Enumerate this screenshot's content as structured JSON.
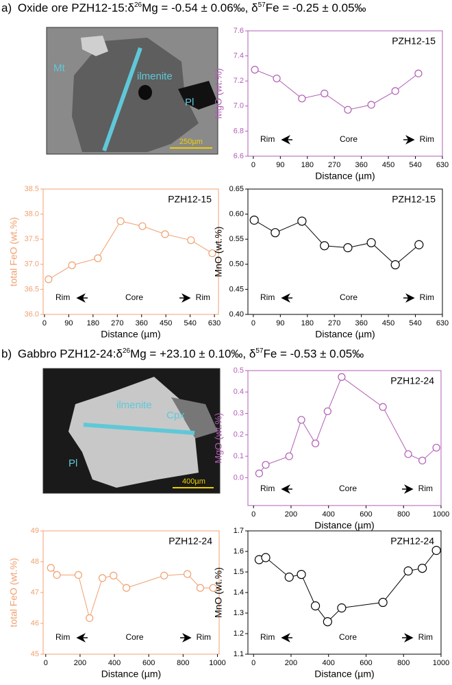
{
  "panels": [
    {
      "parts": [
        "a)",
        "Oxide ore PZH12-15:δ",
        "26",
        "Mg = -0.54 ± 0.06‰, δ",
        "57",
        "Fe = -0.25 ± 0.05‰"
      ]
    },
    {
      "parts": [
        "b)",
        "Gabbro PZH12-24:δ",
        "26",
        "Mg = +23.10 ± 0.10‰, δ",
        "57",
        "Fe = -0.53 ± 0.05‰"
      ]
    }
  ],
  "micrographs": [
    {
      "labels": [
        "Mt",
        "ilmenite",
        "Pl"
      ],
      "scale": "250µm"
    },
    {
      "labels": [
        "ilmenite",
        "Cpx",
        "Pl"
      ],
      "scale": "400µm"
    }
  ],
  "chart_data": [
    {
      "type": "line",
      "tag": "PZH12-15",
      "ylabel": "MgO (wt.%)",
      "xlabel": "Distance (µm)",
      "color": "#b05cb5",
      "annotations": [
        "Rim",
        "Core",
        "Rim"
      ],
      "x": [
        5,
        78,
        162,
        237,
        315,
        393,
        473,
        550
      ],
      "values": [
        7.29,
        7.22,
        7.06,
        7.1,
        6.97,
        7.01,
        7.12,
        7.26
      ],
      "xlim": [
        -18,
        630
      ],
      "xticks": [
        0,
        90,
        180,
        270,
        360,
        450,
        540,
        630
      ],
      "ylim": [
        6.6,
        7.6
      ],
      "yticks": [
        6.6,
        6.8,
        {
          "value": 7,
          "label": "7.0"
        },
        7.2,
        7.4,
        7.6
      ]
    },
    {
      "type": "line",
      "tag": "PZH12-15",
      "ylabel": "total FeO (wt.%)",
      "xlabel": "Distance (µm)",
      "color": "#f0a070",
      "annotations": [
        "Rim",
        "Core",
        "Rim"
      ],
      "x": [
        15,
        102,
        198,
        282,
        363,
        447,
        543,
        622
      ],
      "values": [
        36.7,
        36.98,
        37.12,
        37.86,
        37.76,
        37.6,
        37.48,
        37.22
      ],
      "xlim": [
        -5,
        645
      ],
      "xticks": [
        0,
        90,
        180,
        270,
        360,
        450,
        540,
        630
      ],
      "ylim": [
        36,
        38.5
      ],
      "yticks": [
        {
          "value": 36,
          "label": "36.0"
        },
        36.5,
        {
          "value": 37,
          "label": "37.0"
        },
        37.5,
        {
          "value": 38,
          "label": "38.0"
        },
        38.5
      ]
    },
    {
      "type": "line",
      "tag": "PZH12-15",
      "ylabel": "MnO (wt.%)",
      "xlabel": "Distance (µm)",
      "color": "#000000",
      "annotations": [
        "Rim",
        "Core",
        "Rim"
      ],
      "x": [
        3,
        73,
        162,
        237,
        315,
        393,
        473,
        552
      ],
      "values": [
        0.588,
        0.563,
        0.586,
        0.537,
        0.533,
        0.543,
        0.499,
        0.539
      ],
      "xlim": [
        -18,
        630
      ],
      "xticks": [
        0,
        90,
        180,
        270,
        360,
        450,
        540,
        630
      ],
      "ylim": [
        0.4,
        0.65
      ],
      "yticks": [
        {
          "value": 0.4,
          "label": "0.40"
        },
        0.45,
        {
          "value": 0.5,
          "label": "0.50"
        },
        0.55,
        {
          "value": 0.6,
          "label": "0.60"
        },
        0.65
      ]
    },
    {
      "type": "line",
      "tag": "PZH12-24",
      "ylabel": "MgO (wt.%)",
      "xlabel": "Distance (µm)",
      "color": "#b05cb5",
      "annotations": [
        "Rim",
        "Core",
        "Rim"
      ],
      "x": [
        30,
        65,
        190,
        255,
        330,
        395,
        470,
        690,
        825,
        900,
        975
      ],
      "values": [
        0.02,
        0.06,
        0.1,
        0.27,
        0.16,
        0.31,
        0.47,
        0.33,
        0.11,
        0.08,
        0.14
      ],
      "xlim": [
        -30,
        1000
      ],
      "xticks": [
        0,
        200,
        400,
        600,
        800,
        1000
      ],
      "ylim": [
        -0.13,
        0.5
      ],
      "yticks": [
        {
          "value": 0,
          "label": "0.0"
        },
        0.1,
        0.2,
        0.3,
        0.4,
        0.5
      ]
    },
    {
      "type": "line",
      "tag": "PZH12-24",
      "ylabel": "total FeO (wt.%)",
      "xlabel": "Distance (µm)",
      "color": "#f0a070",
      "annotations": [
        "Rim",
        "Core",
        "Rim"
      ],
      "x": [
        30,
        65,
        190,
        255,
        330,
        395,
        470,
        690,
        825,
        900,
        975
      ],
      "values": [
        47.8,
        47.57,
        47.57,
        46.17,
        47.47,
        47.55,
        47.15,
        47.55,
        47.6,
        47.15,
        47.15
      ],
      "xlim": [
        -15,
        1010
      ],
      "xticks": [
        0,
        200,
        400,
        600,
        800,
        1000
      ],
      "ylim": [
        45,
        49
      ],
      "yticks": [
        45,
        46,
        47,
        48,
        49
      ]
    },
    {
      "type": "line",
      "tag": "PZH12-24",
      "ylabel": "MnO (wt.%)",
      "xlabel": "Distance (µm)",
      "color": "#000000",
      "annotations": [
        "Rim",
        "Core",
        "Rim"
      ],
      "x": [
        30,
        65,
        190,
        255,
        330,
        395,
        470,
        690,
        825,
        900,
        975
      ],
      "values": [
        1.56,
        1.57,
        1.475,
        1.488,
        1.335,
        1.258,
        1.325,
        1.352,
        1.505,
        1.518,
        1.605
      ],
      "xlim": [
        -30,
        1000
      ],
      "xticks": [
        0,
        200,
        400,
        600,
        800,
        1000
      ],
      "ylim": [
        1.1,
        1.7
      ],
      "yticks": [
        1.1,
        1.2,
        1.3,
        1.4,
        1.5,
        1.6,
        1.7
      ]
    }
  ]
}
